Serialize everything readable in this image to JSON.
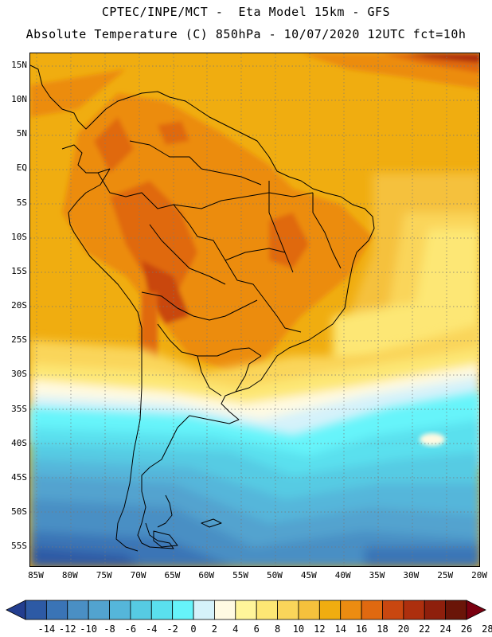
{
  "header": {
    "line1": "CPTEC/INPE/MCT -  Eta Model 15km - GFS",
    "line2": "Absolute Temperature (C) 850hPa - 10/07/2020 12UTC fct=10h"
  },
  "map": {
    "lat_labels": [
      "15N",
      "10N",
      "5N",
      "EQ",
      "5S",
      "10S",
      "15S",
      "20S",
      "25S",
      "30S",
      "35S",
      "40S",
      "45S",
      "50S",
      "55S"
    ],
    "lon_labels": [
      "85W",
      "80W",
      "75W",
      "70W",
      "65W",
      "60W",
      "55W",
      "50W",
      "45W",
      "40W",
      "35W",
      "30W",
      "25W",
      "20W"
    ]
  },
  "colorbar": {
    "labels": [
      "-14",
      "-12",
      "-10",
      "-8",
      "-6",
      "-4",
      "-2",
      "0",
      "2",
      "4",
      "6",
      "8",
      "10",
      "12",
      "14",
      "16",
      "18",
      "20",
      "22",
      "24",
      "26",
      "28"
    ],
    "colors": [
      "#233e8f",
      "#2d5aa5",
      "#3a74b6",
      "#4a8fc4",
      "#52a3cf",
      "#55b6da",
      "#56cbe3",
      "#5ae0ee",
      "#66f4fa",
      "#d5f2fa",
      "#fffae2",
      "#fff59a",
      "#fde774",
      "#fad55a",
      "#f5c13c",
      "#f0ad10",
      "#ec8c11",
      "#e06910",
      "#c94710",
      "#ad2f0e",
      "#8e1f0c",
      "#6a1508",
      "#7a0010"
    ]
  }
}
